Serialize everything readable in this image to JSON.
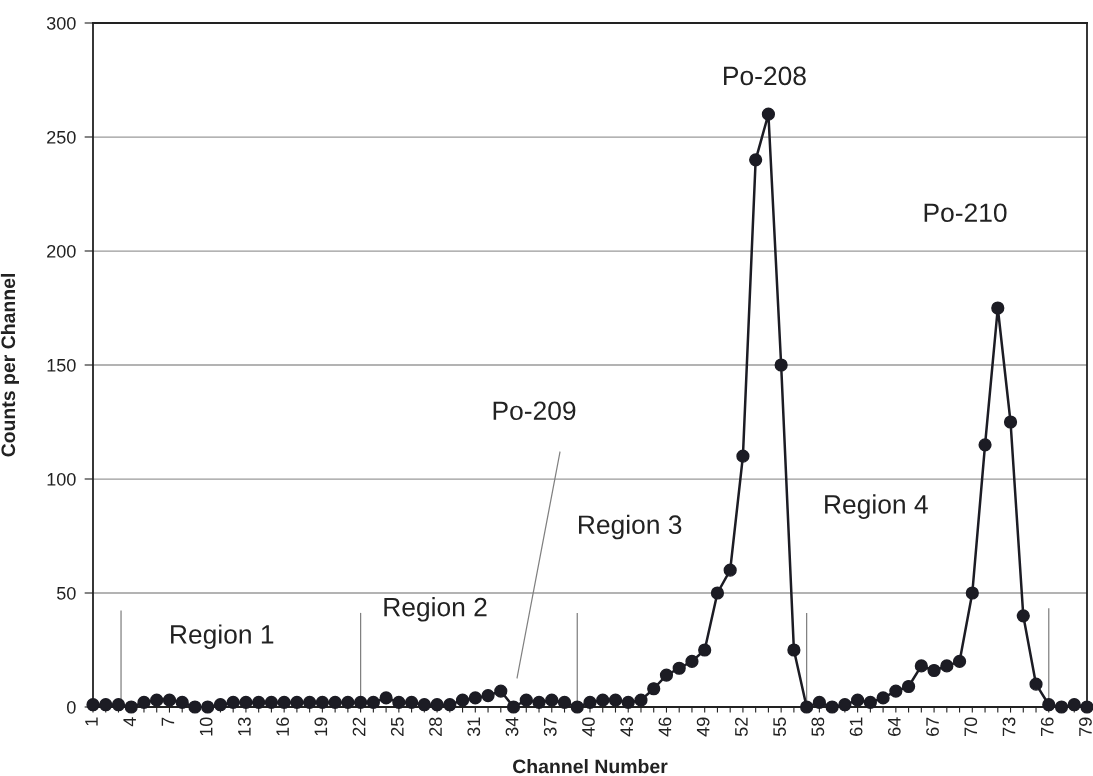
{
  "chart_data": {
    "type": "line",
    "xlabel": "Channel Number",
    "ylabel": "Counts per Channel",
    "x": [
      1,
      2,
      3,
      4,
      5,
      6,
      7,
      8,
      9,
      10,
      11,
      12,
      13,
      14,
      15,
      16,
      17,
      18,
      19,
      20,
      21,
      22,
      23,
      24,
      25,
      26,
      27,
      28,
      29,
      30,
      31,
      32,
      33,
      34,
      35,
      36,
      37,
      38,
      39,
      40,
      41,
      42,
      43,
      44,
      45,
      46,
      47,
      48,
      49,
      50,
      51,
      52,
      53,
      54,
      55,
      56,
      57,
      58,
      59,
      60,
      61,
      62,
      63,
      64,
      65,
      66,
      67,
      68,
      69,
      70,
      71,
      72,
      73,
      74,
      75,
      76,
      77,
      78,
      79
    ],
    "series": [
      {
        "color": "#1c1c24",
        "values": [
          1,
          1,
          1,
          0,
          2,
          3,
          3,
          2,
          0,
          0,
          1,
          2,
          2,
          2,
          2,
          2,
          2,
          2,
          2,
          2,
          2,
          2,
          2,
          4,
          2,
          2,
          1,
          1,
          1,
          3,
          4,
          5,
          7,
          0,
          3,
          2,
          3,
          2,
          0,
          2,
          3,
          3,
          2,
          3,
          8,
          14,
          17,
          20,
          25,
          50,
          60,
          110,
          240,
          260,
          150,
          25,
          0,
          2,
          0,
          1,
          3,
          2,
          4,
          7,
          9,
          18,
          16,
          18,
          20,
          50,
          115,
          175,
          125,
          40,
          10,
          1,
          0,
          1,
          0
        ]
      },
      {
        "color": "#808080",
        "marker": "none",
        "x": [
          3.2,
          3.2
        ],
        "values": [
          0,
          42
        ]
      },
      {
        "color": "#808080",
        "marker": "none",
        "x": [
          22,
          22
        ],
        "values": [
          0,
          41
        ]
      },
      {
        "color": "#808080",
        "marker": "none",
        "x": [
          39,
          39
        ],
        "values": [
          0,
          41
        ]
      },
      {
        "color": "#808080",
        "marker": "none",
        "x": [
          57,
          57
        ],
        "values": [
          0,
          41
        ]
      },
      {
        "color": "#808080",
        "marker": "none",
        "x": [
          76,
          76
        ],
        "values": [
          0,
          43
        ]
      }
    ],
    "xlim": [
      1,
      79
    ],
    "xticks": [
      1,
      {
        "value": 2,
        "label": null
      },
      {
        "value": 3,
        "label": null
      },
      4,
      {
        "value": 5,
        "label": null
      },
      {
        "value": 6,
        "label": null
      },
      7,
      {
        "value": 8,
        "label": null
      },
      {
        "value": 9,
        "label": null
      },
      10,
      {
        "value": 11,
        "label": null
      },
      {
        "value": 12,
        "label": null
      },
      13,
      {
        "value": 14,
        "label": null
      },
      {
        "value": 15,
        "label": null
      },
      16,
      {
        "value": 17,
        "label": null
      },
      {
        "value": 18,
        "label": null
      },
      19,
      {
        "value": 20,
        "label": null
      },
      {
        "value": 21,
        "label": null
      },
      22,
      {
        "value": 23,
        "label": null
      },
      {
        "value": 24,
        "label": null
      },
      25,
      {
        "value": 26,
        "label": null
      },
      {
        "value": 27,
        "label": null
      },
      28,
      {
        "value": 29,
        "label": null
      },
      {
        "value": 30,
        "label": null
      },
      31,
      {
        "value": 32,
        "label": null
      },
      {
        "value": 33,
        "label": null
      },
      34,
      {
        "value": 35,
        "label": null
      },
      {
        "value": 36,
        "label": null
      },
      37,
      {
        "value": 38,
        "label": null
      },
      {
        "value": 39,
        "label": null
      },
      40,
      {
        "value": 41,
        "label": null
      },
      {
        "value": 42,
        "label": null
      },
      43,
      {
        "value": 44,
        "label": null
      },
      {
        "value": 45,
        "label": null
      },
      46,
      {
        "value": 47,
        "label": null
      },
      {
        "value": 48,
        "label": null
      },
      49,
      {
        "value": 50,
        "label": null
      },
      {
        "value": 51,
        "label": null
      },
      52,
      {
        "value": 53,
        "label": null
      },
      {
        "value": 54,
        "label": null
      },
      55,
      {
        "value": 56,
        "label": null
      },
      {
        "value": 57,
        "label": null
      },
      58,
      {
        "value": 59,
        "label": null
      },
      {
        "value": 60,
        "label": null
      },
      61,
      {
        "value": 62,
        "label": null
      },
      {
        "value": 63,
        "label": null
      },
      64,
      {
        "value": 65,
        "label": null
      },
      {
        "value": 66,
        "label": null
      },
      67,
      {
        "value": 68,
        "label": null
      },
      {
        "value": 69,
        "label": null
      },
      70,
      {
        "value": 71,
        "label": null
      },
      {
        "value": 72,
        "label": null
      },
      73,
      {
        "value": 74,
        "label": null
      },
      {
        "value": 75,
        "label": null
      },
      76,
      {
        "value": 77,
        "label": null
      },
      {
        "value": 78,
        "label": null
      },
      79
    ],
    "ylim": [
      0,
      300
    ],
    "yticks": [
      0,
      50,
      100,
      150,
      200,
      250,
      300
    ],
    "grid": "y",
    "marker": "circle",
    "line_style": "solid",
    "annotations": [
      {
        "text": "Po-208",
        "x": 54,
        "y": 260
      },
      "Po-210",
      "Po-209",
      "Region 1",
      "Region 2",
      "Region 3",
      "Region 4"
    ]
  }
}
